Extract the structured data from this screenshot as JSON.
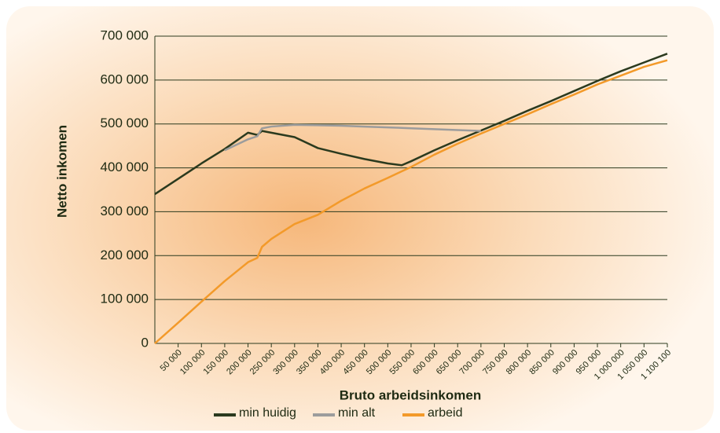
{
  "chart_data": {
    "type": "line",
    "xlabel": "Bruto arbeidsinkomen",
    "ylabel": "Netto inkomen",
    "x": [
      0,
      50000,
      100000,
      150000,
      200000,
      220000,
      230000,
      250000,
      300000,
      350000,
      400000,
      450000,
      500000,
      530000,
      550000,
      600000,
      650000,
      700000,
      750000,
      800000,
      850000,
      900000,
      950000,
      1000000,
      1050000,
      1100000
    ],
    "series": [
      {
        "name": "min huidig",
        "color": "#2b3a1e",
        "values": [
          340000,
          375000,
          410000,
          443000,
          480000,
          475000,
          484000,
          480000,
          470000,
          445000,
          432000,
          420000,
          410000,
          406000,
          415000,
          440000,
          463000,
          485000,
          507000,
          530000,
          552000,
          575000,
          598000,
          620000,
          640000,
          660000
        ]
      },
      {
        "name": "min alt",
        "color": "#9c9c9c",
        "values": [
          null,
          null,
          null,
          440000,
          465000,
          472000,
          490000,
          494000,
          498000,
          497000,
          496000,
          494000,
          492000,
          491000,
          490000,
          488000,
          486000,
          484000,
          null,
          null,
          null,
          null,
          null,
          null,
          null,
          null
        ]
      },
      {
        "name": "arbeid",
        "color": "#f39a2a",
        "values": [
          0,
          47000,
          95000,
          142000,
          185000,
          195000,
          220000,
          238000,
          272000,
          293000,
          325000,
          353000,
          377000,
          392000,
          402000,
          430000,
          455000,
          478000,
          500000,
          522000,
          545000,
          567000,
          590000,
          610000,
          630000,
          645000
        ]
      }
    ],
    "xlim": [
      0,
      1100100
    ],
    "xticks": [
      {
        "value": 50000,
        "label": "50 000"
      },
      {
        "value": 100000,
        "label": "100 000"
      },
      {
        "value": 150000,
        "label": "150 000"
      },
      {
        "value": 200000,
        "label": "200 000"
      },
      {
        "value": 250000,
        "label": "250 000"
      },
      {
        "value": 300000,
        "label": "300 000"
      },
      {
        "value": 350000,
        "label": "350 000"
      },
      {
        "value": 400000,
        "label": "400 000"
      },
      {
        "value": 450000,
        "label": "450 000"
      },
      {
        "value": 500000,
        "label": "500 000"
      },
      {
        "value": 550000,
        "label": "550 000"
      },
      {
        "value": 600000,
        "label": "600 000"
      },
      {
        "value": 650000,
        "label": "650 000"
      },
      {
        "value": 700000,
        "label": "700 000"
      },
      {
        "value": 750000,
        "label": "750 000"
      },
      {
        "value": 800000,
        "label": "800 000"
      },
      {
        "value": 850000,
        "label": "850 000"
      },
      {
        "value": 900000,
        "label": "900 000"
      },
      {
        "value": 950000,
        "label": "950 000"
      },
      {
        "value": 1000000,
        "label": "1 000 000"
      },
      {
        "value": 1050000,
        "label": "1 050 000"
      },
      {
        "value": 1100100,
        "label": "1 100 100"
      }
    ],
    "ylim": [
      0,
      700000
    ],
    "yticks": [
      0,
      {
        "value": 100000,
        "label": "100 000"
      },
      {
        "value": 200000,
        "label": "200 000"
      },
      {
        "value": 300000,
        "label": "300 000"
      },
      {
        "value": 400000,
        "label": "400 000"
      },
      {
        "value": 500000,
        "label": "500 000"
      },
      {
        "value": 600000,
        "label": "600 000"
      },
      {
        "value": 700000,
        "label": "700 000"
      }
    ],
    "grid": true
  }
}
